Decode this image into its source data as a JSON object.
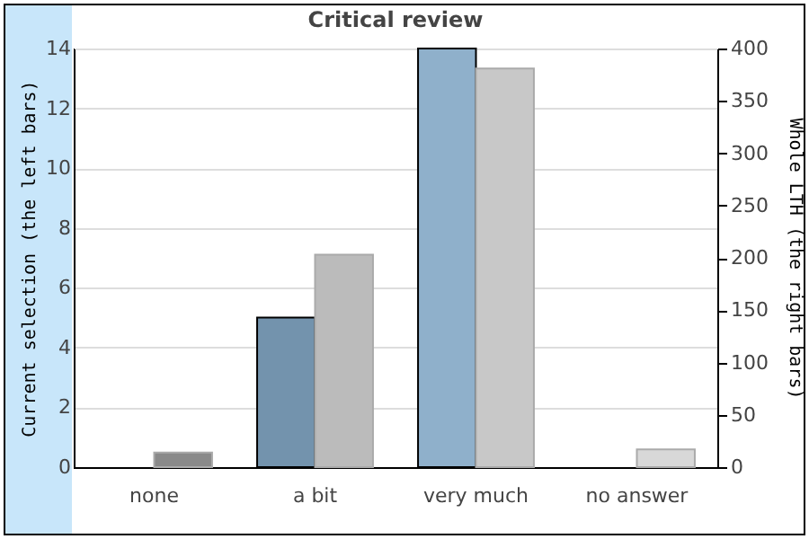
{
  "chart_data": {
    "type": "bar",
    "title": "Critical review",
    "categories": [
      "none",
      "a bit",
      "very much",
      "no answer"
    ],
    "ylabel": "Current selection (the left bars)",
    "y2label": "Whole LTH (the right bars)",
    "series": [
      {
        "colors": [
          "#7393ad",
          "#7393ad",
          "#8fb0cb",
          "#7393ad"
        ],
        "values": [
          null,
          5,
          14,
          null
        ]
      },
      {
        "axis": "y2",
        "colors": [
          "#8a8a8a",
          "#bbbbbb",
          "#c8c8c8",
          "#d8d8d8"
        ],
        "values": [
          14,
          203,
          381,
          17
        ]
      }
    ],
    "ylim": [
      0,
      14
    ],
    "yticks": [
      0,
      2,
      4,
      6,
      8,
      10,
      12,
      14
    ],
    "y2lim": [
      0,
      400
    ],
    "y2ticks": [
      0,
      50,
      100,
      150,
      200,
      250,
      300,
      350,
      400
    ],
    "grid": "y"
  }
}
